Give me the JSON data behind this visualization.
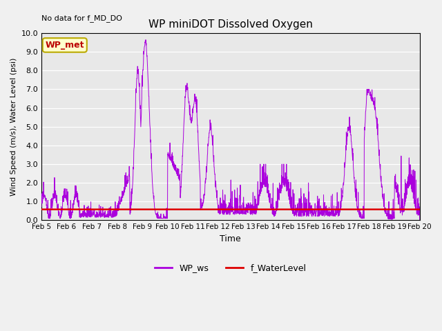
{
  "title": "WP miniDOT Dissolved Oxygen",
  "top_left_text": "No data for f_MD_DO",
  "ylabel": "Wind Speed (m/s), Water Level (psi)",
  "xlabel": "Time",
  "ylim": [
    0.0,
    10.0
  ],
  "yticks": [
    0.0,
    1.0,
    2.0,
    3.0,
    4.0,
    5.0,
    6.0,
    7.0,
    8.0,
    9.0,
    10.0
  ],
  "fig_bg_color": "#f0f0f0",
  "plot_bg_color": "#e8e8e8",
  "wp_ws_color": "#aa00dd",
  "f_waterlevel_color": "#dd0000",
  "legend_label_ws": "WP_ws",
  "legend_label_wl": "f_WaterLevel",
  "inset_label": "WP_met",
  "inset_bg": "#ffffcc",
  "inset_border": "#bbaa00",
  "inset_text_color": "#bb0000",
  "x_start_days": 5,
  "x_end_days": 20,
  "x_tick_days": [
    5,
    6,
    7,
    8,
    9,
    10,
    11,
    12,
    13,
    14,
    15,
    16,
    17,
    18,
    19,
    20
  ],
  "x_tick_labels": [
    "Feb 5",
    "Feb 6",
    "Feb 7",
    "Feb 8",
    "Feb 9",
    "Feb 10",
    "Feb 11",
    "Feb 12",
    "Feb 13",
    "Feb 14",
    "Feb 15",
    "Feb 16",
    "Feb 17",
    "Feb 18",
    "Feb 19",
    "Feb 20"
  ],
  "water_level_value": 0.58,
  "seed": 42
}
